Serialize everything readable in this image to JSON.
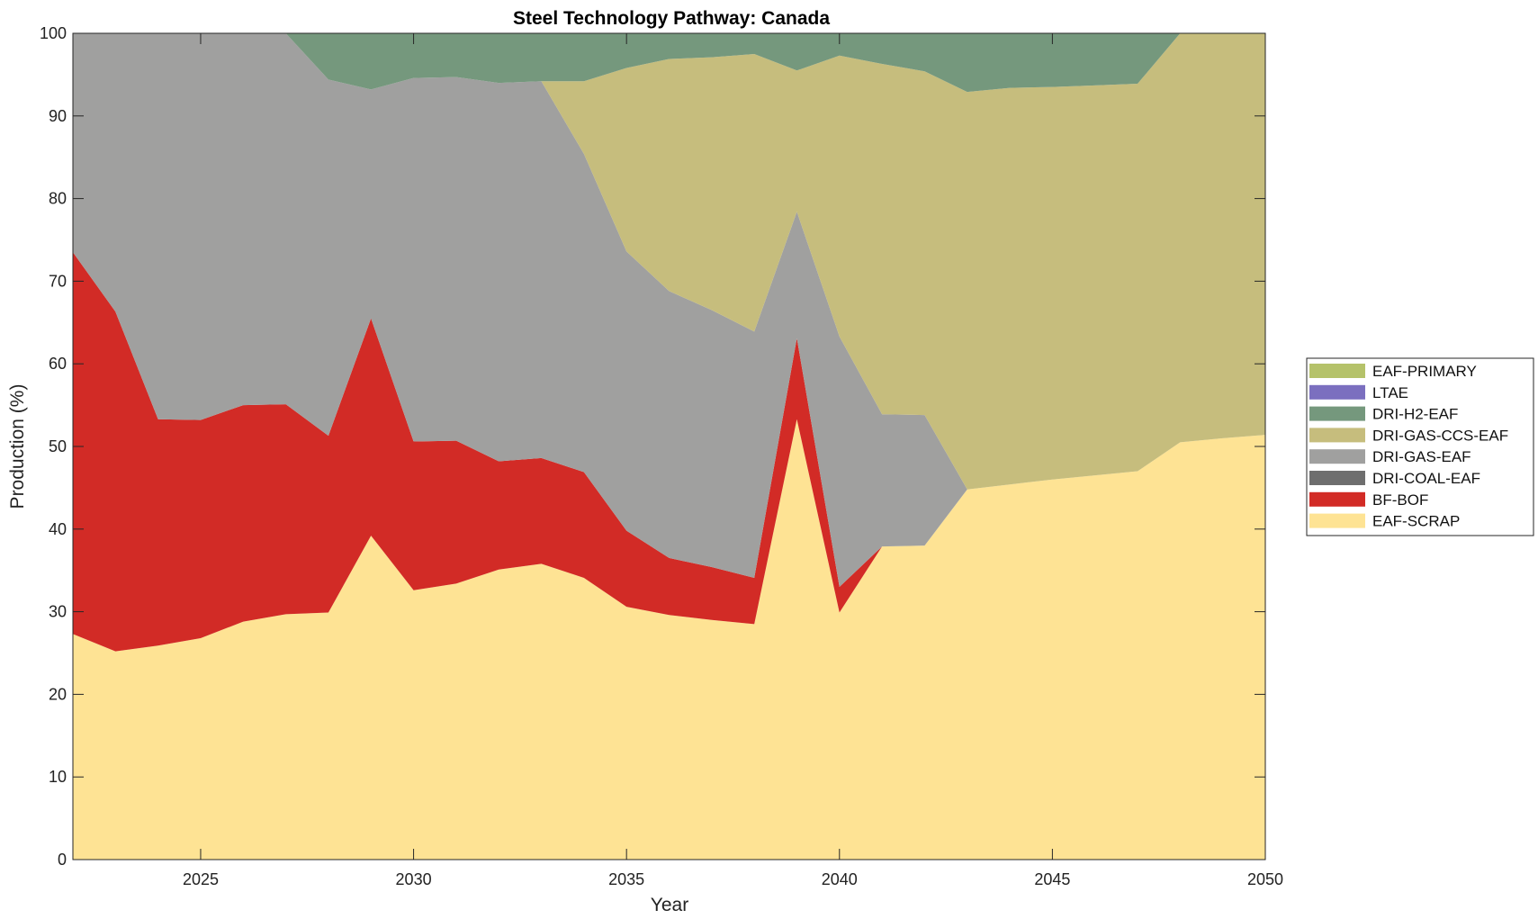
{
  "chart_data": {
    "type": "area",
    "title": "Steel Technology Pathway: Canada",
    "xlabel": "Year",
    "ylabel": "Production (%)",
    "xlim": [
      2022,
      2050
    ],
    "ylim": [
      0,
      100
    ],
    "xticks": [
      2025,
      2030,
      2035,
      2040,
      2045,
      2050
    ],
    "yticks": [
      0,
      10,
      20,
      30,
      40,
      50,
      60,
      70,
      80,
      90,
      100
    ],
    "stacked": true,
    "legend_position": "right",
    "x": [
      2022,
      2023,
      2024,
      2025,
      2026,
      2027,
      2028,
      2029,
      2030,
      2031,
      2032,
      2033,
      2034,
      2035,
      2036,
      2037,
      2038,
      2039,
      2040,
      2041,
      2042,
      2043,
      2044,
      2045,
      2046,
      2047,
      2048,
      2049,
      2050
    ],
    "series": [
      {
        "name": "EAF-SCRAP",
        "color": "#fee394",
        "values": [
          27.3,
          25.2,
          25.9,
          26.8,
          28.8,
          29.7,
          29.9,
          39.2,
          32.6,
          33.4,
          35.1,
          35.8,
          34.1,
          30.6,
          29.6,
          29.0,
          28.5,
          53.3,
          29.9,
          37.9,
          38.0,
          44.8,
          45.4,
          46.0,
          46.5,
          47.0,
          50.5,
          51.0,
          51.4
        ]
      },
      {
        "name": "BF-BOF",
        "color": "#d22b26",
        "values": [
          46.2,
          41.1,
          27.4,
          26.4,
          26.2,
          25.4,
          21.4,
          26.3,
          18.0,
          17.3,
          13.1,
          12.8,
          12.8,
          9.2,
          6.9,
          6.4,
          5.6,
          9.8,
          3.1,
          0,
          0,
          0,
          0,
          0,
          0,
          0,
          0,
          0,
          0
        ]
      },
      {
        "name": "DRI-COAL-EAF",
        "color": "#6e6e6e",
        "values": [
          0,
          0,
          0,
          0,
          0,
          0,
          0,
          0,
          0,
          0,
          0,
          0,
          0,
          0,
          0,
          0,
          0,
          0,
          0,
          0,
          0,
          0,
          0,
          0,
          0,
          0,
          0,
          0,
          0
        ]
      },
      {
        "name": "DRI-GAS-EAF",
        "color": "#a0a09f",
        "values": [
          26.5,
          33.7,
          46.7,
          46.8,
          45.0,
          44.9,
          43.1,
          27.7,
          44.0,
          44.0,
          45.8,
          45.6,
          38.5,
          33.8,
          32.3,
          31.1,
          29.8,
          15.3,
          30.3,
          16.0,
          15.8,
          0,
          0,
          0,
          0,
          0,
          0,
          0,
          0
        ]
      },
      {
        "name": "DRI-GAS-CCS-EAF",
        "color": "#c6bd7d",
        "values": [
          0,
          0,
          0,
          0,
          0,
          0,
          0,
          0,
          0,
          0,
          0,
          0,
          8.8,
          22.2,
          28.1,
          30.6,
          33.6,
          17.1,
          34.0,
          42.4,
          41.6,
          48.1,
          48.0,
          47.5,
          47.2,
          46.9,
          49.5,
          49.0,
          48.6
        ]
      },
      {
        "name": "DRI-H2-EAF",
        "color": "#75987d",
        "values": [
          0,
          0,
          0,
          0,
          0,
          0,
          5.6,
          6.8,
          5.4,
          5.3,
          6.0,
          5.8,
          5.8,
          4.2,
          3.1,
          2.9,
          2.5,
          4.5,
          2.7,
          3.7,
          4.6,
          7.1,
          6.6,
          6.5,
          6.3,
          6.1,
          0,
          0,
          0
        ]
      },
      {
        "name": "LTAE",
        "color": "#7b6fbf",
        "values": [
          0,
          0,
          0,
          0,
          0,
          0,
          0,
          0,
          0,
          0,
          0,
          0,
          0,
          0,
          0,
          0,
          0,
          0,
          0,
          0,
          0,
          0,
          0,
          0,
          0,
          0,
          0,
          0,
          0
        ]
      },
      {
        "name": "EAF-PRIMARY",
        "color": "#b5c26a",
        "values": [
          0,
          0,
          0,
          0,
          0,
          0,
          0,
          0,
          0,
          0,
          0,
          0,
          0,
          0,
          0,
          0,
          0,
          0,
          0,
          0,
          0,
          0,
          0,
          0,
          0,
          0,
          0,
          0,
          0
        ]
      }
    ],
    "legend_order": [
      "EAF-PRIMARY",
      "LTAE",
      "DRI-H2-EAF",
      "DRI-GAS-CCS-EAF",
      "DRI-GAS-EAF",
      "DRI-COAL-EAF",
      "BF-BOF",
      "EAF-SCRAP"
    ]
  }
}
